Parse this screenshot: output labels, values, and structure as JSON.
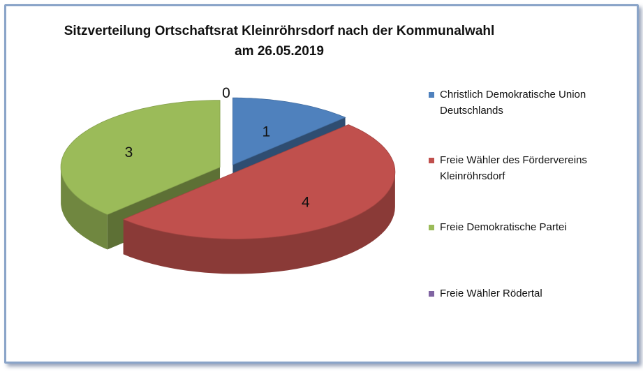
{
  "chart_data": {
    "type": "pie",
    "title_line1": "Sitzverteilung Ortschaftsrat Kleinröhrsdorf nach der Kommunalwahl",
    "title_line2": "am 26.05.2019",
    "categories": [
      "Christlich Demokratische Union Deutschlands",
      "Freie Wähler des Fördervereins Kleinröhrsdorf",
      "Freie Demokratische Partei",
      "Freie Wähler Rödertal"
    ],
    "values": [
      1,
      4,
      3,
      0
    ],
    "colors": [
      "#4f81bd",
      "#c0504d",
      "#9bbb59",
      "#8064a2"
    ],
    "data_labels": [
      "1",
      "4",
      "3",
      "0"
    ],
    "legend_position": "right",
    "style": "3d-exploded-pie"
  }
}
